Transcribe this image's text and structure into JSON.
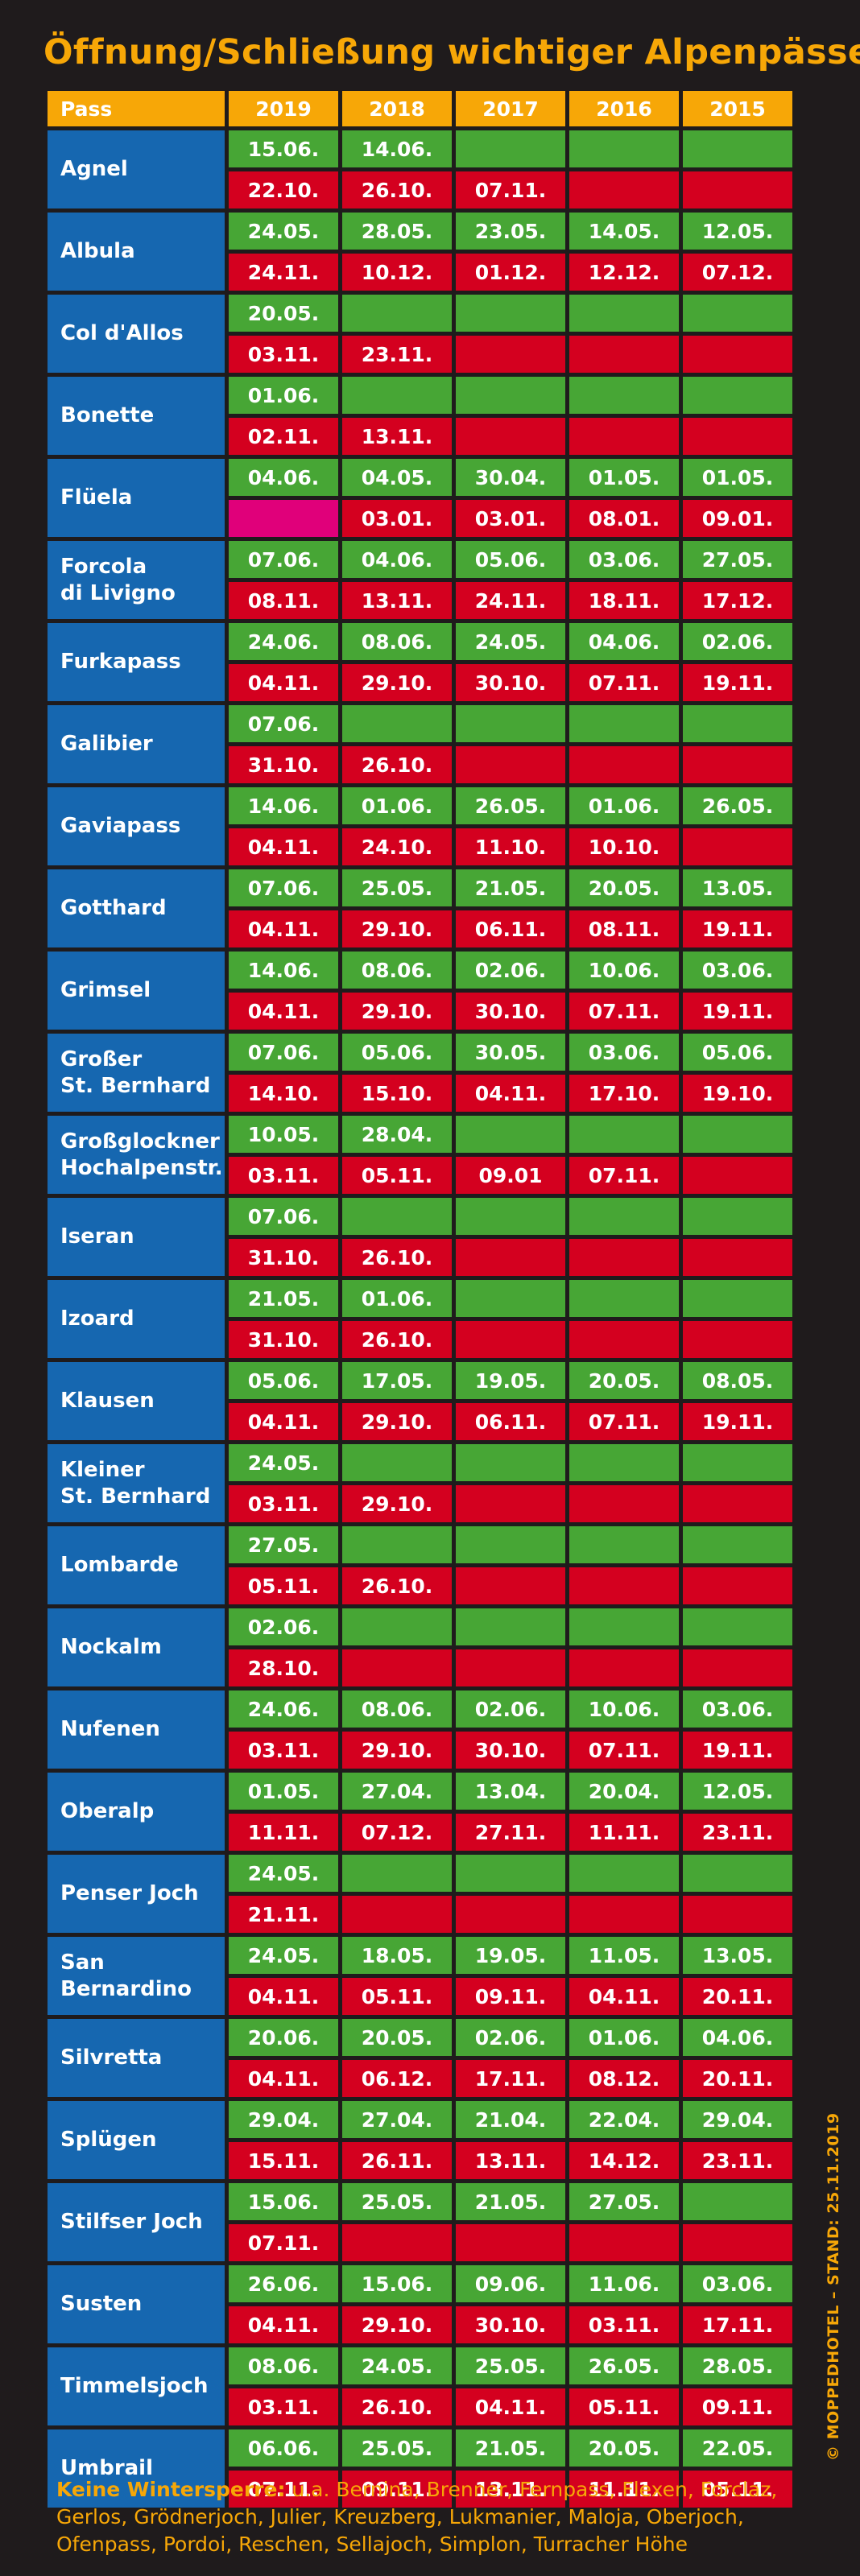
{
  "title": "Öffnung/Schließung wichtiger Alpenpässe",
  "credit": "© MOPPEDHOTEL – STAND: 25.11.2019",
  "table": {
    "headers": [
      "Pass",
      "2019",
      "2018",
      "2017",
      "2016",
      "2015"
    ],
    "rows": [
      {
        "name": "Agnel",
        "open": [
          "15.06.",
          "14.06.",
          "",
          "",
          ""
        ],
        "close": [
          "22.10.",
          "26.10.",
          "07.11.",
          "",
          ""
        ]
      },
      {
        "name": "Albula",
        "open": [
          "24.05.",
          "28.05.",
          "23.05.",
          "14.05.",
          "12.05."
        ],
        "close": [
          "24.11.",
          "10.12.",
          "01.12.",
          "12.12.",
          "07.12."
        ]
      },
      {
        "name": "Col d'Allos",
        "open": [
          "20.05.",
          "",
          "",
          "",
          ""
        ],
        "close": [
          "03.11.",
          "23.11.",
          "",
          "",
          ""
        ]
      },
      {
        "name": "Bonette",
        "open": [
          "01.06.",
          "",
          "",
          "",
          ""
        ],
        "close": [
          "02.11.",
          "13.11.",
          "",
          "",
          ""
        ]
      },
      {
        "name": "Flüela",
        "open": [
          "04.06.",
          "04.05.",
          "30.04.",
          "01.05.",
          "01.05."
        ],
        "close": [
          "",
          "03.01.",
          "03.01.",
          "08.01.",
          "09.01."
        ],
        "close_special": [
          0
        ]
      },
      {
        "name": "Forcola\ndi Livigno",
        "open": [
          "07.06.",
          "04.06.",
          "05.06.",
          "03.06.",
          "27.05."
        ],
        "close": [
          "08.11.",
          "13.11.",
          "24.11.",
          "18.11.",
          "17.12."
        ]
      },
      {
        "name": "Furkapass",
        "open": [
          "24.06.",
          "08.06.",
          "24.05.",
          "04.06.",
          "02.06."
        ],
        "close": [
          "04.11.",
          "29.10.",
          "30.10.",
          "07.11.",
          "19.11."
        ]
      },
      {
        "name": "Galibier",
        "open": [
          "07.06.",
          "",
          "",
          "",
          ""
        ],
        "close": [
          "31.10.",
          "26.10.",
          "",
          "",
          ""
        ]
      },
      {
        "name": "Gaviapass",
        "open": [
          "14.06.",
          "01.06.",
          "26.05.",
          "01.06.",
          "26.05."
        ],
        "close": [
          "04.11.",
          "24.10.",
          "11.10.",
          "10.10.",
          ""
        ]
      },
      {
        "name": "Gotthard",
        "open": [
          "07.06.",
          "25.05.",
          "21.05.",
          "20.05.",
          "13.05."
        ],
        "close": [
          "04.11.",
          "29.10.",
          "06.11.",
          "08.11.",
          "19.11."
        ]
      },
      {
        "name": "Grimsel",
        "open": [
          "14.06.",
          "08.06.",
          "02.06.",
          "10.06.",
          "03.06."
        ],
        "close": [
          "04.11.",
          "29.10.",
          "30.10.",
          "07.11.",
          "19.11."
        ]
      },
      {
        "name": "Großer\nSt. Bernhard",
        "open": [
          "07.06.",
          "05.06.",
          "30.05.",
          "03.06.",
          "05.06."
        ],
        "close": [
          "14.10.",
          "15.10.",
          "04.11.",
          "17.10.",
          "19.10."
        ]
      },
      {
        "name": "Großglockner\nHochalpenstr.",
        "open": [
          "10.05.",
          "28.04.",
          "",
          "",
          ""
        ],
        "close": [
          "03.11.",
          "05.11.",
          "09.01",
          "07.11.",
          ""
        ]
      },
      {
        "name": "Iseran",
        "open": [
          "07.06.",
          "",
          "",
          "",
          ""
        ],
        "close": [
          "31.10.",
          "26.10.",
          "",
          "",
          ""
        ]
      },
      {
        "name": "Izoard",
        "open": [
          "21.05.",
          "01.06.",
          "",
          "",
          ""
        ],
        "close": [
          "31.10.",
          "26.10.",
          "",
          "",
          ""
        ]
      },
      {
        "name": "Klausen",
        "open": [
          "05.06.",
          "17.05.",
          "19.05.",
          "20.05.",
          "08.05."
        ],
        "close": [
          "04.11.",
          "29.10.",
          "06.11.",
          "07.11.",
          "19.11."
        ]
      },
      {
        "name": "Kleiner\nSt. Bernhard",
        "open": [
          "24.05.",
          "",
          "",
          "",
          ""
        ],
        "close": [
          "03.11.",
          "29.10.",
          "",
          "",
          ""
        ]
      },
      {
        "name": "Lombarde",
        "open": [
          "27.05.",
          "",
          "",
          "",
          ""
        ],
        "close": [
          "05.11.",
          "26.10.",
          "",
          "",
          ""
        ]
      },
      {
        "name": "Nockalm",
        "open": [
          "02.06.",
          "",
          "",
          "",
          ""
        ],
        "close": [
          "28.10.",
          "",
          "",
          "",
          ""
        ]
      },
      {
        "name": "Nufenen",
        "open": [
          "24.06.",
          "08.06.",
          "02.06.",
          "10.06.",
          "03.06."
        ],
        "close": [
          "03.11.",
          "29.10.",
          "30.10.",
          "07.11.",
          "19.11."
        ]
      },
      {
        "name": "Oberalp",
        "open": [
          "01.05.",
          "27.04.",
          "13.04.",
          "20.04.",
          "12.05."
        ],
        "close": [
          "11.11.",
          "07.12.",
          "27.11.",
          "11.11.",
          "23.11."
        ]
      },
      {
        "name": "Penser Joch",
        "open": [
          "24.05.",
          "",
          "",
          "",
          ""
        ],
        "close": [
          "21.11.",
          "",
          "",
          "",
          ""
        ]
      },
      {
        "name": "San\nBernardino",
        "open": [
          "24.05.",
          "18.05.",
          "19.05.",
          "11.05.",
          "13.05."
        ],
        "close": [
          "04.11.",
          "05.11.",
          "09.11.",
          "04.11.",
          "20.11."
        ]
      },
      {
        "name": "Silvretta",
        "open": [
          "20.06.",
          "20.05.",
          "02.06.",
          "01.06.",
          "04.06."
        ],
        "close": [
          "04.11.",
          "06.12.",
          "17.11.",
          "08.12.",
          "20.11."
        ]
      },
      {
        "name": "Splügen",
        "open": [
          "29.04.",
          "27.04.",
          "21.04.",
          "22.04.",
          "29.04."
        ],
        "close": [
          "15.11.",
          "26.11.",
          "13.11.",
          "14.12.",
          "23.11."
        ]
      },
      {
        "name": "Stilfser Joch",
        "open": [
          "15.06.",
          "25.05.",
          "21.05.",
          "27.05.",
          ""
        ],
        "close": [
          "07.11.",
          "",
          "",
          "",
          ""
        ]
      },
      {
        "name": "Susten",
        "open": [
          "26.06.",
          "15.06.",
          "09.06.",
          "11.06.",
          "03.06."
        ],
        "close": [
          "04.11.",
          "29.10.",
          "30.10.",
          "03.11.",
          "17.11."
        ]
      },
      {
        "name": "Timmelsjoch",
        "open": [
          "08.06.",
          "24.05.",
          "25.05.",
          "26.05.",
          "28.05."
        ],
        "close": [
          "03.11.",
          "26.10.",
          "04.11.",
          "05.11.",
          "09.11."
        ]
      },
      {
        "name": "Umbrail",
        "open": [
          "06.06.",
          "25.05.",
          "21.05.",
          "20.05.",
          "22.05."
        ],
        "close": [
          "07.11.",
          "09.11.",
          "13.11.",
          "11.11.",
          "05.11."
        ]
      }
    ]
  },
  "footer": {
    "label": "Keine Wintersperre:",
    "text": " u.a. Bernina, Brenner, Fernpass, Flexen, Forclaz, Gerlos, Grödnerjoch, Julier, Kreuzberg, Lukmanier, Maloja, Oberjoch, Ofenpass, Pordoi, Reschen, Sellajoch, Simplon, Turracher Höhe"
  },
  "colors": {
    "accent": "#f7a707",
    "pass_blue": "#1667b0",
    "open_green": "#47a635",
    "close_red": "#d4001f",
    "special_magenta": "#e0007a",
    "background": "#1f1b1c"
  }
}
